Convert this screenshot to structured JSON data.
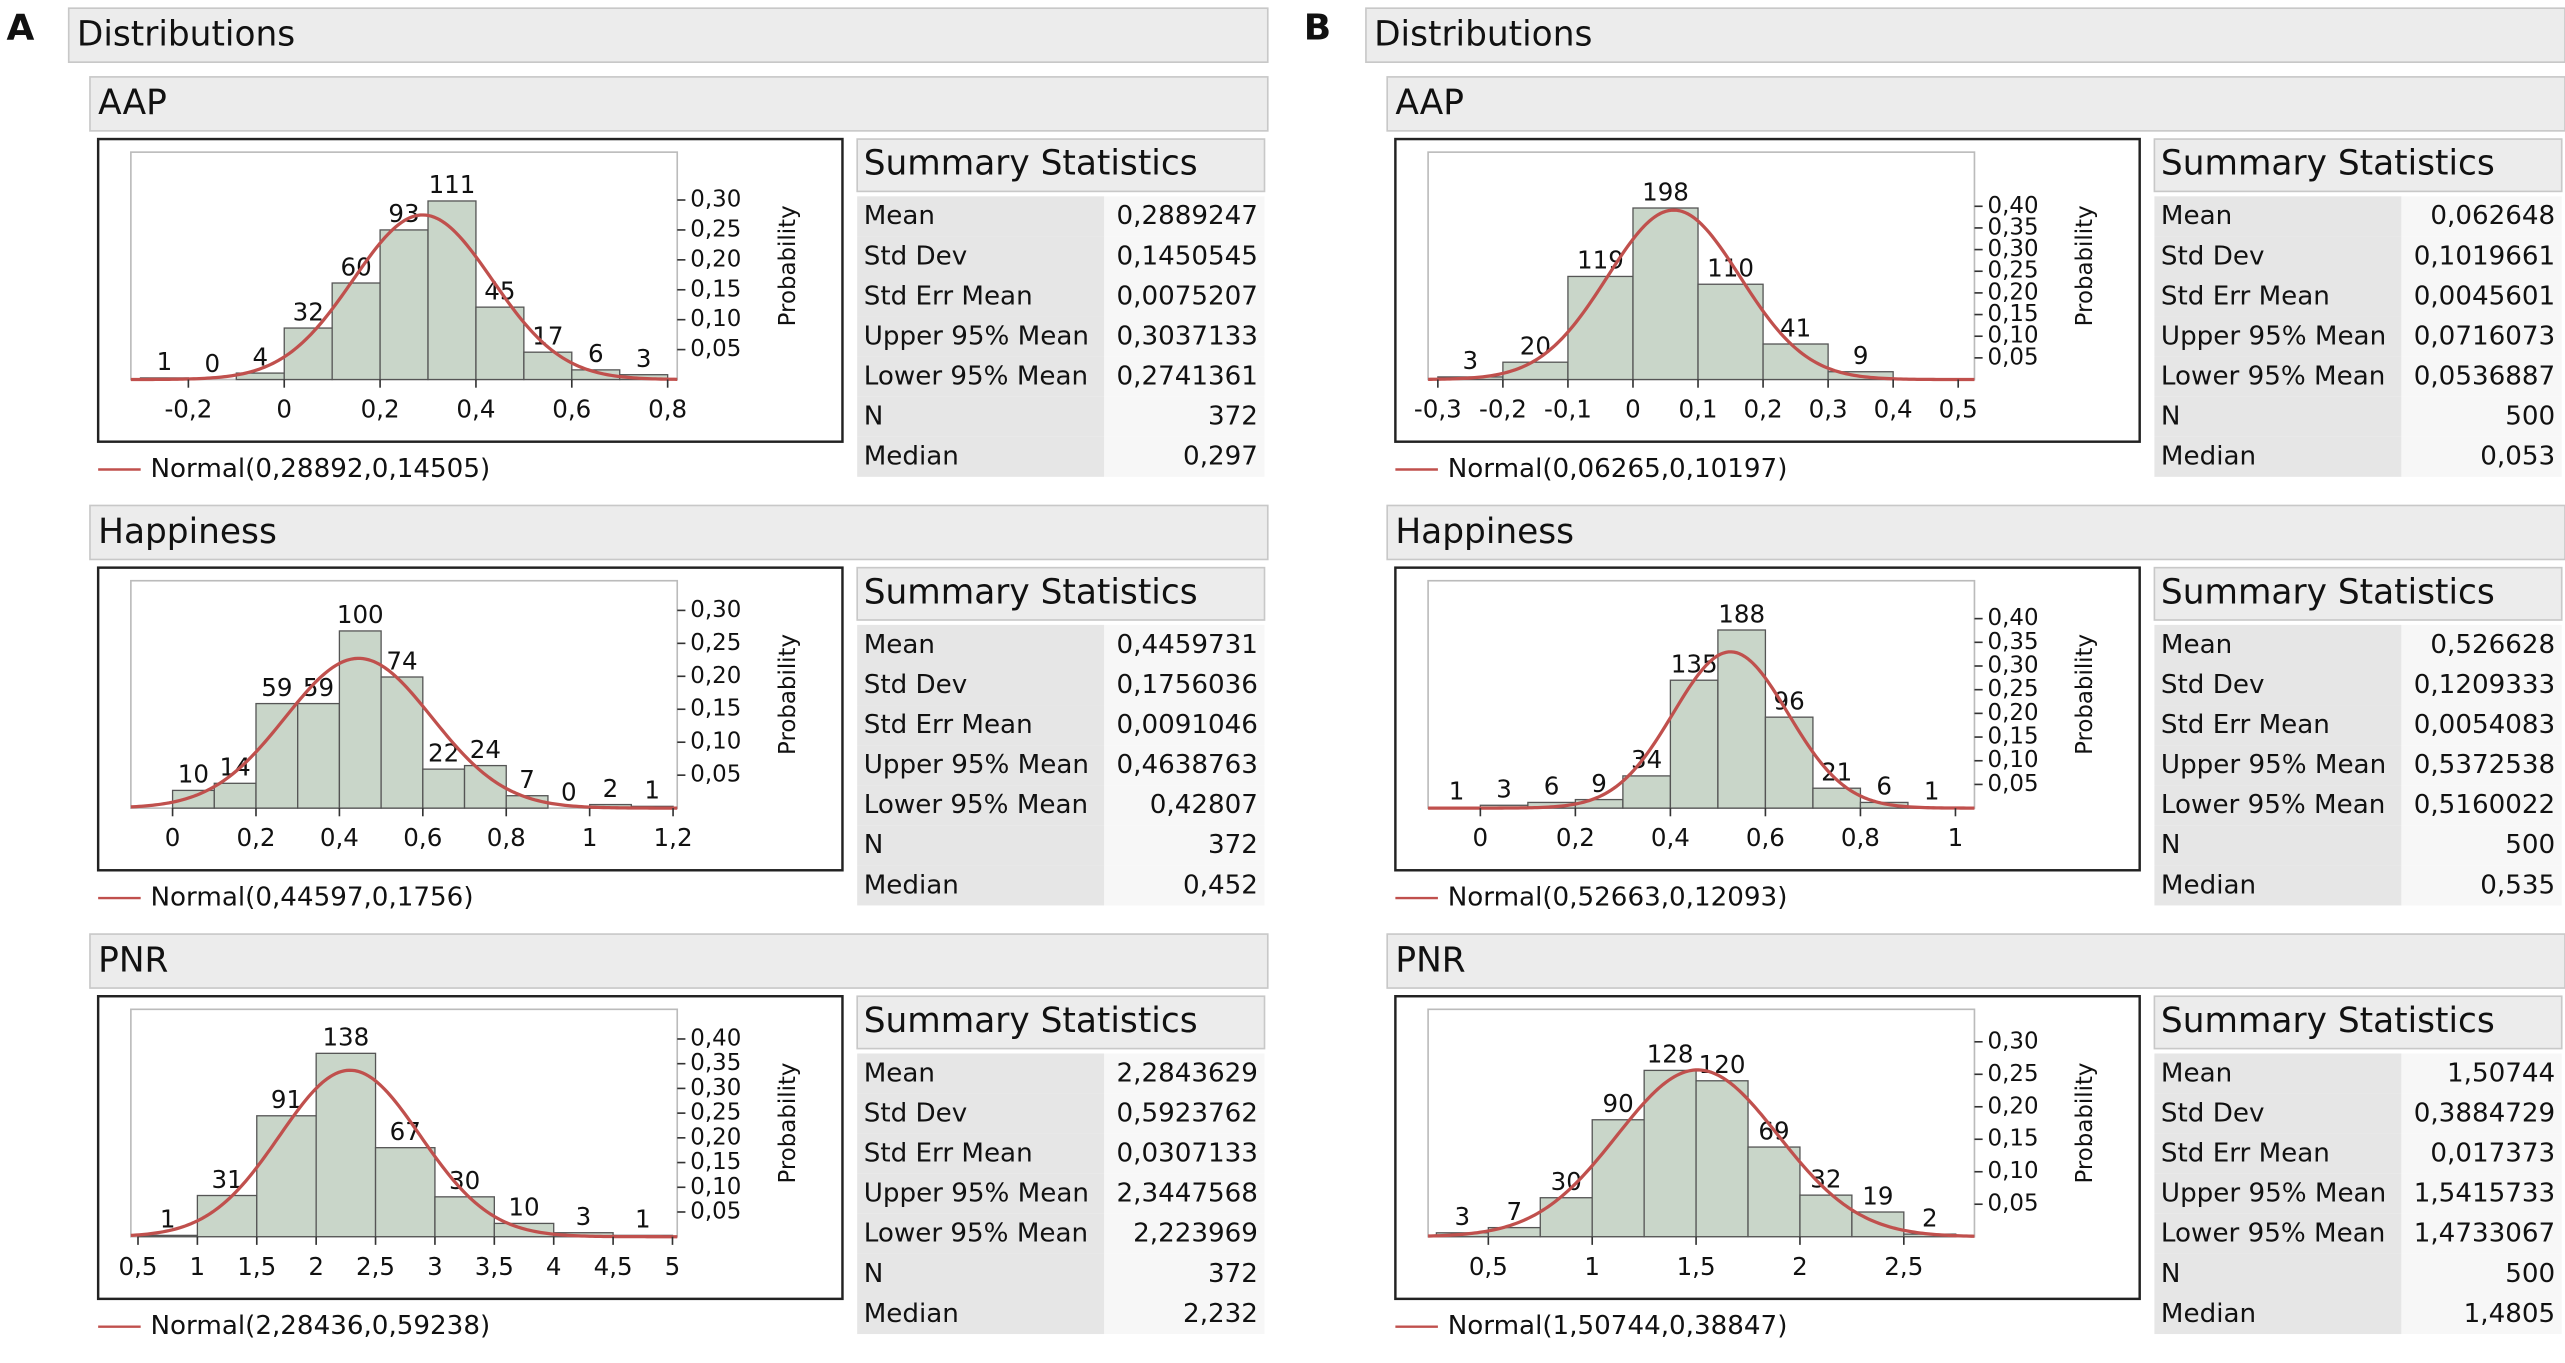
{
  "panels": [
    {
      "label": "A",
      "title": "Distributions",
      "reports": [
        {
          "name": "AAP",
          "histogram": {
            "type": "histogram",
            "color": "#c9d6c9",
            "bins": [
              -0.3,
              -0.2,
              -0.1,
              0,
              0.1,
              0.2,
              0.3,
              0.4,
              0.5,
              0.6,
              0.7,
              0.8
            ],
            "counts": [
              1,
              0,
              4,
              32,
              60,
              93,
              111,
              45,
              17,
              6,
              3
            ],
            "xlim": [
              -0.32,
              0.82
            ],
            "xticks": [
              {
                "value": -0.2,
                "label": "-0,2"
              },
              0,
              {
                "value": 0.2,
                "label": "0,2"
              },
              {
                "value": 0.4,
                "label": "0,4"
              },
              {
                "value": 0.6,
                "label": "0,6"
              },
              {
                "value": 0.8,
                "label": "0,8"
              }
            ],
            "y2lim": [
              0,
              0.38
            ],
            "y2ticks": [
              {
                "value": 0.05,
                "label": "0,05"
              },
              {
                "value": 0.1,
                "label": "0,10"
              },
              {
                "value": 0.15,
                "label": "0,15"
              },
              {
                "value": 0.2,
                "label": "0,20"
              },
              {
                "value": 0.25,
                "label": "0,25"
              },
              {
                "value": 0.3,
                "label": "0,30"
              }
            ],
            "y2label": "Probability",
            "normal": {
              "label": "Normal(0,28892,0,14505)",
              "mean": 0.28892,
              "sd": 0.14505,
              "color": "#c0504d"
            }
          },
          "stats": {
            "title": "Summary Statistics",
            "rows": [
              {
                "label": "Mean",
                "value": "0,2889247"
              },
              {
                "label": "Std Dev",
                "value": "0,1450545"
              },
              {
                "label": "Std Err Mean",
                "value": "0,0075207"
              },
              {
                "label": "Upper 95% Mean",
                "value": "0,3037133"
              },
              {
                "label": "Lower 95% Mean",
                "value": "0,2741361"
              },
              {
                "label": "N",
                "value": 372
              },
              {
                "label": "Median",
                "value": "0,297"
              }
            ]
          }
        },
        {
          "name": "Happiness",
          "histogram": {
            "type": "histogram",
            "color": "#c9d6c9",
            "bins": [
              0,
              0.1,
              0.2,
              0.3,
              0.4,
              0.5,
              0.6,
              0.7,
              0.8,
              0.9,
              1.0,
              1.1,
              1.2
            ],
            "counts": [
              10,
              14,
              59,
              59,
              100,
              74,
              22,
              24,
              7,
              0,
              2,
              1
            ],
            "xlim": [
              -0.1,
              1.21
            ],
            "xticks": [
              0,
              {
                "value": 0.2,
                "label": "0,2"
              },
              {
                "value": 0.4,
                "label": "0,4"
              },
              {
                "value": 0.6,
                "label": "0,6"
              },
              {
                "value": 0.8,
                "label": "0,8"
              },
              1,
              {
                "value": 1.2,
                "label": "1,2"
              }
            ],
            "y2lim": [
              0,
              0.345
            ],
            "y2ticks": [
              {
                "value": 0.05,
                "label": "0,05"
              },
              {
                "value": 0.1,
                "label": "0,10"
              },
              {
                "value": 0.15,
                "label": "0,15"
              },
              {
                "value": 0.2,
                "label": "0,20"
              },
              {
                "value": 0.25,
                "label": "0,25"
              },
              {
                "value": 0.3,
                "label": "0,30"
              }
            ],
            "y2label": "Probability",
            "normal": {
              "label": "Normal(0,44597,0,1756)",
              "mean": 0.44597,
              "sd": 0.1756,
              "color": "#c0504d"
            }
          },
          "stats": {
            "title": "Summary Statistics",
            "rows": [
              {
                "label": "Mean",
                "value": "0,4459731"
              },
              {
                "label": "Std Dev",
                "value": "0,1756036"
              },
              {
                "label": "Std Err Mean",
                "value": "0,0091046"
              },
              {
                "label": "Upper 95% Mean",
                "value": "0,4638763"
              },
              {
                "label": "Lower 95% Mean",
                "value": "0,42807"
              },
              {
                "label": "N",
                "value": 372
              },
              {
                "label": "Median",
                "value": "0,452"
              }
            ]
          }
        },
        {
          "name": "PNR",
          "histogram": {
            "type": "histogram",
            "color": "#c9d6c9",
            "bins": [
              0.5,
              1,
              1.5,
              2,
              2.5,
              3,
              3.5,
              4,
              4.5,
              5
            ],
            "counts": [
              1,
              31,
              91,
              138,
              67,
              30,
              10,
              3,
              1
            ],
            "xlim": [
              0.44,
              5.04
            ],
            "xticks": [
              {
                "value": 0.5,
                "label": "0,5"
              },
              1,
              {
                "value": 1.5,
                "label": "1,5"
              },
              2,
              {
                "value": 2.5,
                "label": "2,5"
              },
              3,
              {
                "value": 3.5,
                "label": "3,5"
              },
              4,
              {
                "value": 4.5,
                "label": "4,5"
              },
              5
            ],
            "y2lim": [
              0,
              0.46
            ],
            "y2ticks": [
              {
                "value": 0.05,
                "label": "0,05"
              },
              {
                "value": 0.1,
                "label": "0,10"
              },
              {
                "value": 0.15,
                "label": "0,15"
              },
              {
                "value": 0.2,
                "label": "0,20"
              },
              {
                "value": 0.25,
                "label": "0,25"
              },
              {
                "value": 0.3,
                "label": "0,30"
              },
              {
                "value": 0.35,
                "label": "0,35"
              },
              {
                "value": 0.4,
                "label": "0,40"
              }
            ],
            "y2label": "Probability",
            "normal": {
              "label": "Normal(2,28436,0,59238)",
              "mean": 2.28436,
              "sd": 0.59238,
              "color": "#c0504d"
            }
          },
          "stats": {
            "title": "Summary Statistics",
            "rows": [
              {
                "label": "Mean",
                "value": "2,2843629"
              },
              {
                "label": "Std Dev",
                "value": "0,5923762"
              },
              {
                "label": "Std Err Mean",
                "value": "0,0307133"
              },
              {
                "label": "Upper 95% Mean",
                "value": "2,3447568"
              },
              {
                "label": "Lower 95% Mean",
                "value": "2,223969"
              },
              {
                "label": "N",
                "value": 372
              },
              {
                "label": "Median",
                "value": "2,232"
              }
            ]
          }
        }
      ]
    },
    {
      "label": "B",
      "title": "Distributions",
      "reports": [
        {
          "name": "AAP",
          "histogram": {
            "type": "histogram",
            "color": "#c9d6c9",
            "bins": [
              -0.3,
              -0.2,
              -0.1,
              0,
              0.1,
              0.2,
              0.3,
              0.4
            ],
            "counts": [
              3,
              20,
              119,
              198,
              110,
              41,
              9
            ],
            "xlim": [
              -0.315,
              0.525
            ],
            "xticks": [
              {
                "value": -0.3,
                "label": "-0,3"
              },
              {
                "value": -0.2,
                "label": "-0,2"
              },
              {
                "value": -0.1,
                "label": "-0,1"
              },
              0,
              {
                "value": 0.1,
                "label": "0,1"
              },
              {
                "value": 0.2,
                "label": "0,2"
              },
              {
                "value": 0.3,
                "label": "0,3"
              },
              {
                "value": 0.4,
                "label": "0,4"
              },
              {
                "value": 0.5,
                "label": "0,5"
              }
            ],
            "y2lim": [
              0,
              0.525
            ],
            "y2ticks": [
              {
                "value": 0.05,
                "label": "0,05"
              },
              {
                "value": 0.1,
                "label": "0,10"
              },
              {
                "value": 0.15,
                "label": "0,15"
              },
              {
                "value": 0.2,
                "label": "0,20"
              },
              {
                "value": 0.25,
                "label": "0,25"
              },
              {
                "value": 0.3,
                "label": "0,30"
              },
              {
                "value": 0.35,
                "label": "0,35"
              },
              {
                "value": 0.4,
                "label": "0,40"
              }
            ],
            "y2label": "Probability",
            "normal": {
              "label": "Normal(0,06265,0,10197)",
              "mean": 0.06265,
              "sd": 0.10197,
              "color": "#c0504d"
            }
          },
          "stats": {
            "title": "Summary Statistics",
            "rows": [
              {
                "label": "Mean",
                "value": "0,062648"
              },
              {
                "label": "Std Dev",
                "value": "0,1019661"
              },
              {
                "label": "Std Err Mean",
                "value": "0,0045601"
              },
              {
                "label": "Upper 95% Mean",
                "value": "0,0716073"
              },
              {
                "label": "Lower 95% Mean",
                "value": "0,0536887"
              },
              {
                "label": "N",
                "value": 500
              },
              {
                "label": "Median",
                "value": "0,053"
              }
            ]
          }
        },
        {
          "name": "Happiness",
          "histogram": {
            "type": "histogram",
            "color": "#c9d6c9",
            "bins": [
              -0.1,
              0,
              0.1,
              0.2,
              0.3,
              0.4,
              0.5,
              0.6,
              0.7,
              0.8,
              0.9,
              1.0
            ],
            "counts": [
              1,
              3,
              6,
              9,
              34,
              135,
              188,
              96,
              21,
              6,
              1
            ],
            "xlim": [
              -0.11,
              1.04
            ],
            "xticks": [
              0,
              {
                "value": 0.2,
                "label": "0,2"
              },
              {
                "value": 0.4,
                "label": "0,4"
              },
              {
                "value": 0.6,
                "label": "0,6"
              },
              {
                "value": 0.8,
                "label": "0,8"
              },
              1
            ],
            "y2lim": [
              0,
              0.48
            ],
            "y2ticks": [
              {
                "value": 0.05,
                "label": "0,05"
              },
              {
                "value": 0.1,
                "label": "0,10"
              },
              {
                "value": 0.15,
                "label": "0,15"
              },
              {
                "value": 0.2,
                "label": "0,20"
              },
              {
                "value": 0.25,
                "label": "0,25"
              },
              {
                "value": 0.3,
                "label": "0,30"
              },
              {
                "value": 0.35,
                "label": "0,35"
              },
              {
                "value": 0.4,
                "label": "0,40"
              }
            ],
            "y2label": "Probability",
            "normal": {
              "label": "Normal(0,52663,0,12093)",
              "mean": 0.52663,
              "sd": 0.12093,
              "color": "#c0504d"
            }
          },
          "stats": {
            "title": "Summary Statistics",
            "rows": [
              {
                "label": "Mean",
                "value": "0,526628"
              },
              {
                "label": "Std Dev",
                "value": "0,1209333"
              },
              {
                "label": "Std Err Mean",
                "value": "0,0054083"
              },
              {
                "label": "Upper 95% Mean",
                "value": "0,5372538"
              },
              {
                "label": "Lower 95% Mean",
                "value": "0,5160022"
              },
              {
                "label": "N",
                "value": 500
              },
              {
                "label": "Median",
                "value": "0,535"
              }
            ]
          }
        },
        {
          "name": "PNR",
          "histogram": {
            "type": "histogram",
            "color": "#c9d6c9",
            "bins": [
              0.25,
              0.5,
              0.75,
              1,
              1.25,
              1.5,
              1.75,
              2,
              2.25,
              2.5,
              2.75
            ],
            "counts": [
              3,
              7,
              30,
              90,
              128,
              120,
              69,
              32,
              19,
              2
            ],
            "xlim": [
              0.21,
              2.84
            ],
            "xticks": [
              {
                "value": 0.5,
                "label": "0,5"
              },
              1,
              {
                "value": 1.5,
                "label": "1,5"
              },
              2,
              {
                "value": 2.5,
                "label": "2,5"
              }
            ],
            "y2lim": [
              0,
              0.35
            ],
            "y2ticks": [
              {
                "value": 0.05,
                "label": "0,05"
              },
              {
                "value": 0.1,
                "label": "0,10"
              },
              {
                "value": 0.15,
                "label": "0,15"
              },
              {
                "value": 0.2,
                "label": "0,20"
              },
              {
                "value": 0.25,
                "label": "0,25"
              },
              {
                "value": 0.3,
                "label": "0,30"
              }
            ],
            "y2label": "Probability",
            "normal": {
              "label": "Normal(1,50744,0,38847)",
              "mean": 1.50744,
              "sd": 0.38847,
              "color": "#c0504d"
            }
          },
          "stats": {
            "title": "Summary Statistics",
            "rows": [
              {
                "label": "Mean",
                "value": "1,50744"
              },
              {
                "label": "Std Dev",
                "value": "0,3884729"
              },
              {
                "label": "Std Err Mean",
                "value": "0,017373"
              },
              {
                "label": "Upper 95% Mean",
                "value": "1,5415733"
              },
              {
                "label": "Lower 95% Mean",
                "value": "1,4733067"
              },
              {
                "label": "N",
                "value": 500
              },
              {
                "label": "Median",
                "value": "1,4805"
              }
            ]
          }
        }
      ]
    }
  ]
}
